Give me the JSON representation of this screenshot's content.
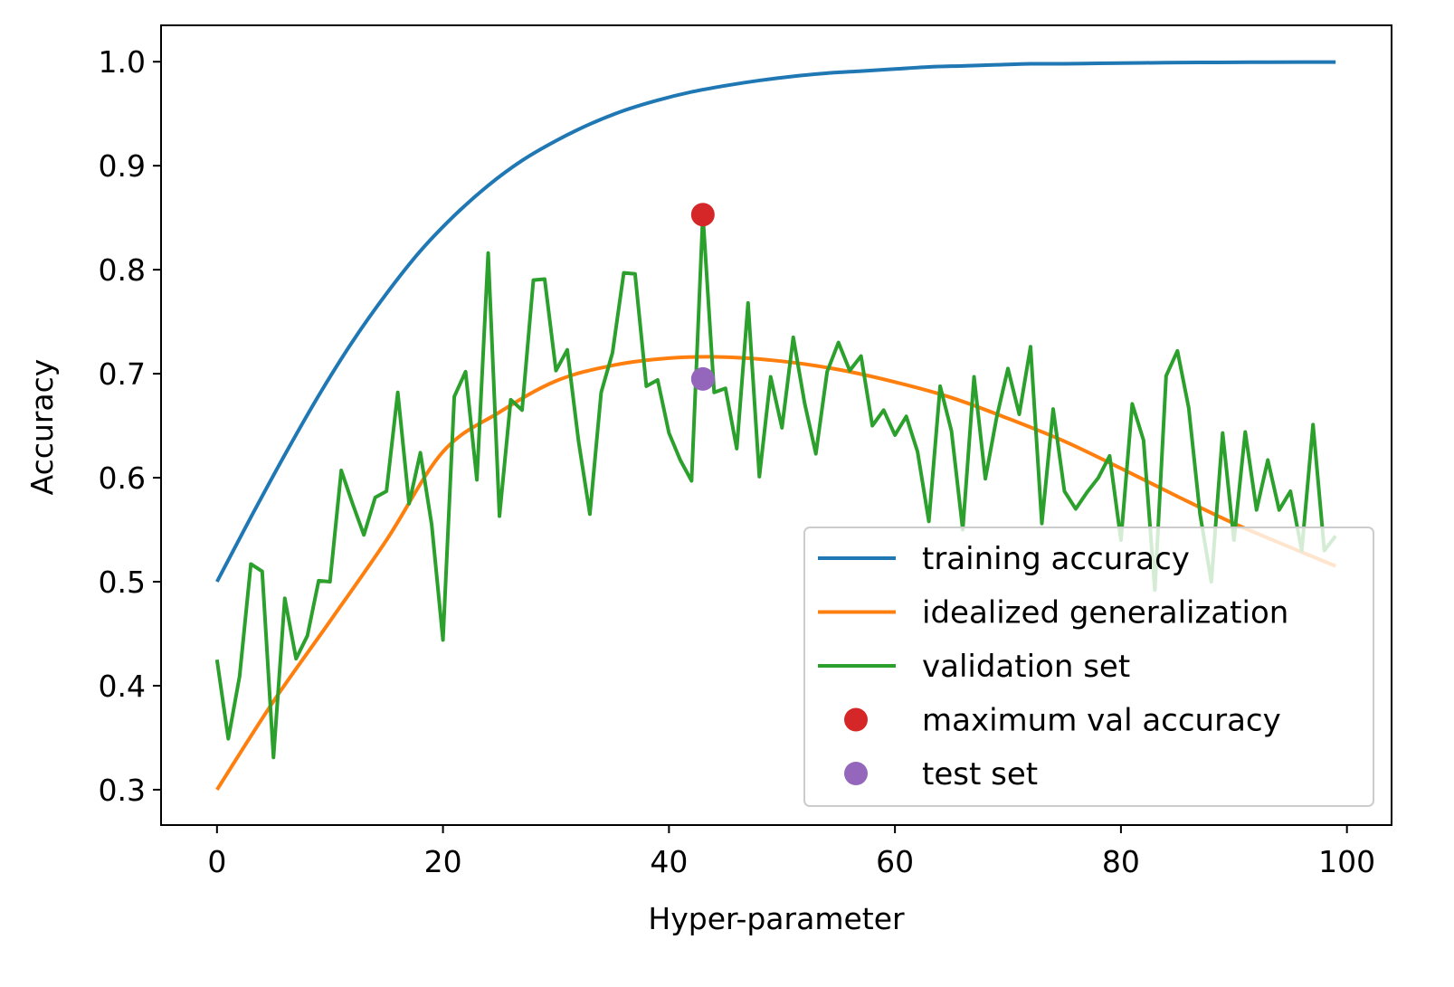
{
  "chart_data": {
    "type": "line",
    "title": "",
    "xlabel": "Hyper-parameter",
    "ylabel": "Accuracy",
    "xlim": [
      -4.95,
      103.95
    ],
    "ylim": [
      0.266,
      1.035
    ],
    "xticks": [
      0,
      20,
      40,
      60,
      80,
      100
    ],
    "xtick_labels": [
      "0",
      "20",
      "40",
      "60",
      "80",
      "100"
    ],
    "yticks": [
      0.3,
      0.4,
      0.5,
      0.6,
      0.7,
      0.8,
      0.9,
      1.0
    ],
    "ytick_labels": [
      "0.3",
      "0.4",
      "0.5",
      "0.6",
      "0.7",
      "0.8",
      "0.9",
      "1.0"
    ],
    "grid": false,
    "legend_position": "lower-right",
    "series": [
      {
        "name": "training accuracy",
        "kind": "line",
        "color": "#1f77b4",
        "x": [
          0,
          3,
          6,
          9,
          12,
          15,
          18,
          21,
          24,
          27,
          30,
          33,
          36,
          39,
          42,
          45,
          48,
          51,
          54,
          57,
          60,
          63,
          66,
          69,
          72,
          75,
          78,
          81,
          84,
          87,
          90,
          93,
          96,
          99
        ],
        "y": [
          0.5,
          0.562,
          0.622,
          0.679,
          0.731,
          0.777,
          0.818,
          0.852,
          0.881,
          0.905,
          0.924,
          0.94,
          0.953,
          0.963,
          0.971,
          0.977,
          0.982,
          0.986,
          0.989,
          0.991,
          0.993,
          0.995,
          0.996,
          0.997,
          0.998,
          0.998,
          0.9985,
          0.9988,
          0.9991,
          0.9993,
          0.9994,
          0.9996,
          0.9997,
          0.9997
        ]
      },
      {
        "name": "idealized generalization",
        "kind": "line",
        "color": "#ff7f0e",
        "x": [
          0,
          5,
          10,
          15,
          20,
          25,
          30,
          35,
          40,
          45,
          50,
          55,
          60,
          65,
          70,
          75,
          80,
          85,
          90,
          95,
          99
        ],
        "y": [
          0.3,
          0.385,
          0.462,
          0.54,
          0.625,
          0.663,
          0.693,
          0.708,
          0.715,
          0.716,
          0.712,
          0.704,
          0.692,
          0.677,
          0.657,
          0.635,
          0.609,
          0.582,
          0.556,
          0.533,
          0.515
        ]
      },
      {
        "name": "validation set",
        "kind": "line",
        "color": "#2ca02c",
        "x": [
          0,
          1,
          2,
          3,
          4,
          5,
          6,
          7,
          8,
          9,
          10,
          11,
          12,
          13,
          14,
          15,
          16,
          17,
          18,
          19,
          20,
          21,
          22,
          23,
          24,
          25,
          26,
          27,
          28,
          29,
          30,
          31,
          32,
          33,
          34,
          35,
          36,
          37,
          38,
          39,
          40,
          41,
          42,
          43,
          44,
          45,
          46,
          47,
          48,
          49,
          50,
          51,
          52,
          53,
          54,
          55,
          56,
          57,
          58,
          59,
          60,
          61,
          62,
          63,
          64,
          65,
          66,
          67,
          68,
          69,
          70,
          71,
          72,
          73,
          74,
          75,
          76,
          77,
          78,
          79,
          80,
          81,
          82,
          83,
          84,
          85,
          86,
          87,
          88,
          89,
          90,
          91,
          92,
          93,
          94,
          95,
          96,
          97,
          98,
          99
        ],
        "y": [
          0.425,
          0.349,
          0.409,
          0.517,
          0.51,
          0.331,
          0.484,
          0.426,
          0.448,
          0.501,
          0.5,
          0.607,
          0.575,
          0.545,
          0.581,
          0.587,
          0.682,
          0.575,
          0.624,
          0.555,
          0.444,
          0.678,
          0.702,
          0.598,
          0.816,
          0.563,
          0.675,
          0.665,
          0.79,
          0.791,
          0.703,
          0.723,
          0.635,
          0.565,
          0.682,
          0.72,
          0.797,
          0.796,
          0.688,
          0.694,
          0.643,
          0.617,
          0.597,
          0.853,
          0.682,
          0.686,
          0.628,
          0.768,
          0.601,
          0.697,
          0.648,
          0.735,
          0.672,
          0.623,
          0.702,
          0.73,
          0.703,
          0.717,
          0.65,
          0.665,
          0.641,
          0.659,
          0.625,
          0.558,
          0.688,
          0.645,
          0.55,
          0.697,
          0.599,
          0.658,
          0.705,
          0.661,
          0.726,
          0.556,
          0.666,
          0.587,
          0.57,
          0.586,
          0.6,
          0.621,
          0.54,
          0.671,
          0.636,
          0.492,
          0.698,
          0.722,
          0.667,
          0.565,
          0.5,
          0.643,
          0.54,
          0.644,
          0.569,
          0.617,
          0.569,
          0.587,
          0.53,
          0.651,
          0.53,
          0.544
        ]
      },
      {
        "name": "maximum val accuracy",
        "kind": "point",
        "color": "#d62728",
        "x": [
          43
        ],
        "y": [
          0.853
        ]
      },
      {
        "name": "test set",
        "kind": "point",
        "color": "#9467bd",
        "x": [
          43
        ],
        "y": [
          0.695
        ]
      }
    ]
  }
}
